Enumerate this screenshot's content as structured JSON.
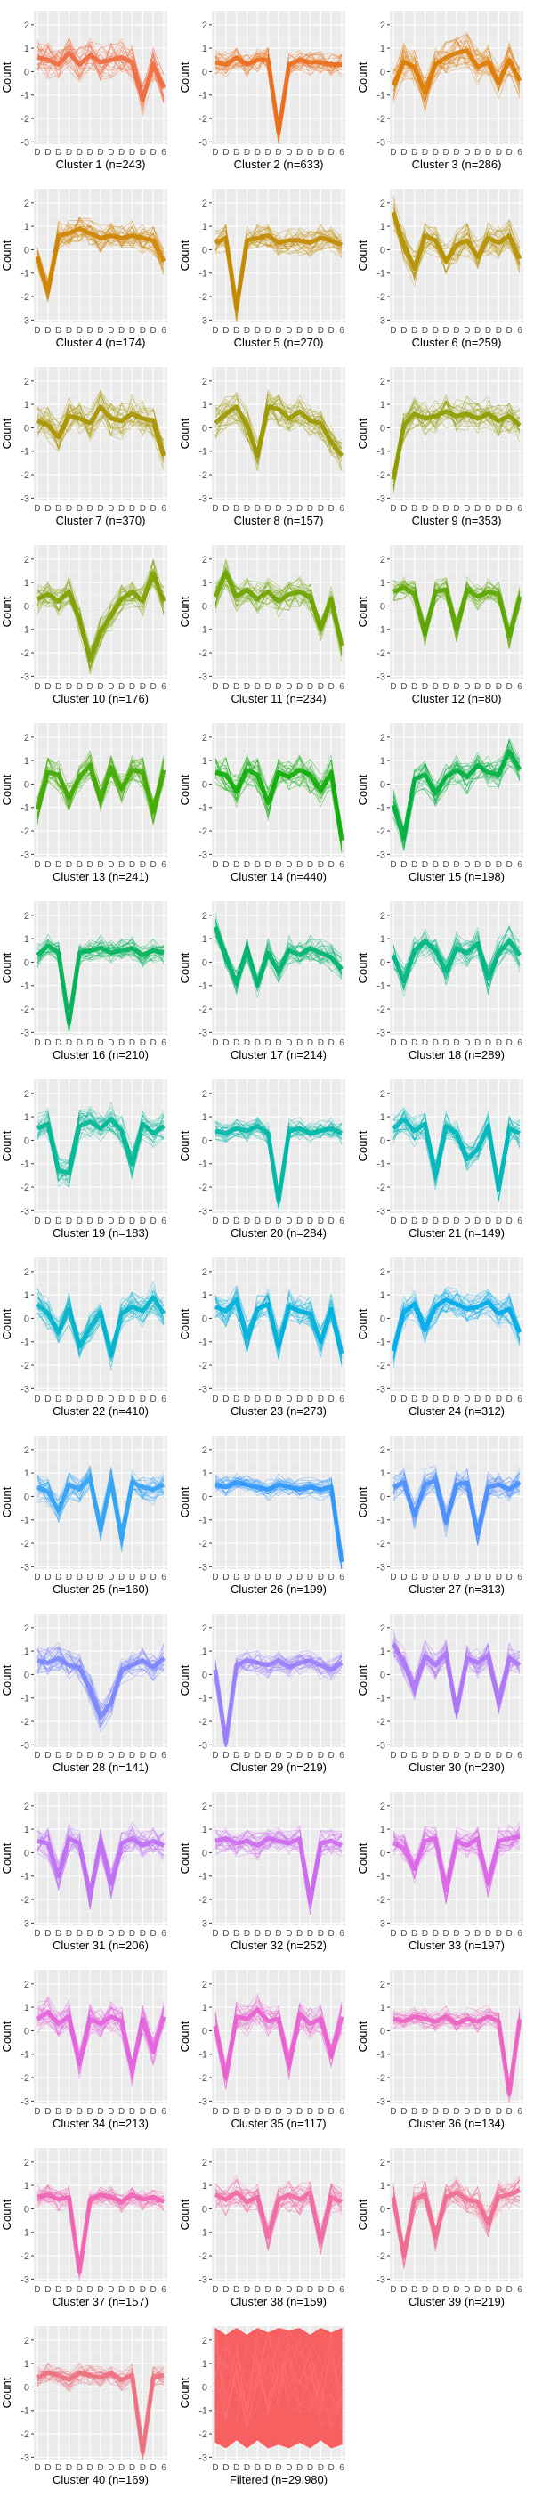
{
  "figure": {
    "background": "#ffffff",
    "panel_background": "#ebebeb",
    "grid_color": "#ffffff"
  },
  "chart_data": {
    "type": "line",
    "description_axis": "profile plots of standardized counts across samples",
    "ylabel": "Count",
    "ylim": [
      -3.1,
      2.6
    ],
    "y_ticks": [
      -3,
      -2,
      -1,
      0,
      1,
      2
    ],
    "x_tick_labels": [
      "D",
      "D",
      "D",
      "D",
      "D",
      "D",
      "D",
      "D",
      "D",
      "D",
      "D",
      "D",
      "6"
    ],
    "grid": true,
    "panels": [
      {
        "title": "Cluster 1 (n=243)",
        "color": "#f06a3e",
        "profile": [
          0.6,
          0.5,
          0.3,
          0.8,
          0.3,
          0.7,
          0.4,
          0.5,
          0.6,
          0.4,
          -1.2,
          0.3,
          -0.7
        ],
        "spread": 0.7
      },
      {
        "title": "Cluster 2 (n=633)",
        "color": "#ea6e1d",
        "profile": [
          0.4,
          0.3,
          0.6,
          0.3,
          0.5,
          0.5,
          -2.6,
          0.3,
          0.5,
          0.4,
          0.4,
          0.3,
          0.3
        ],
        "spread": 0.45
      },
      {
        "title": "Cluster 3 (n=286)",
        "color": "#dd7a00",
        "profile": [
          -0.6,
          0.4,
          0.2,
          -0.9,
          0.3,
          0.6,
          0.8,
          0.9,
          0.2,
          0.4,
          -0.5,
          0.5,
          -0.4
        ],
        "spread": 0.7
      },
      {
        "title": "Cluster 4 (n=174)",
        "color": "#cf8300",
        "profile": [
          -0.3,
          -1.8,
          0.6,
          0.7,
          0.9,
          0.7,
          0.5,
          0.6,
          0.5,
          0.6,
          0.5,
          0.4,
          -0.5
        ],
        "spread": 0.55
      },
      {
        "title": "Cluster 5 (n=270)",
        "color": "#c28a00",
        "profile": [
          0.3,
          0.5,
          -2.5,
          0.4,
          0.5,
          0.6,
          0.3,
          0.4,
          0.4,
          0.3,
          0.5,
          0.4,
          0.2
        ],
        "spread": 0.55
      },
      {
        "title": "Cluster 6 (n=259)",
        "color": "#b59000",
        "profile": [
          1.6,
          0.2,
          -0.8,
          0.6,
          0.4,
          -0.5,
          0.2,
          0.4,
          -0.3,
          0.5,
          0.3,
          0.6,
          -0.4
        ],
        "spread": 0.7
      },
      {
        "title": "Cluster 7 (n=370)",
        "color": "#a89400",
        "profile": [
          0.3,
          0.1,
          -0.4,
          0.5,
          0.4,
          0.2,
          0.9,
          0.4,
          0.3,
          0.6,
          0.4,
          0.3,
          -1.2
        ],
        "spread": 0.7
      },
      {
        "title": "Cluster 8 (n=157)",
        "color": "#9b9800",
        "profile": [
          0.2,
          0.6,
          0.9,
          0.1,
          -1.2,
          0.9,
          0.8,
          0.4,
          0.7,
          0.3,
          0.2,
          -0.6,
          -1.2
        ],
        "spread": 0.65
      },
      {
        "title": "Cluster 9 (n=353)",
        "color": "#8e9c00",
        "profile": [
          -2.2,
          0.1,
          0.6,
          0.4,
          0.5,
          0.7,
          0.5,
          0.6,
          0.4,
          0.6,
          0.3,
          0.5,
          0.1
        ],
        "spread": 0.65
      },
      {
        "title": "Cluster 10 (n=176)",
        "color": "#7fa000",
        "profile": [
          0.3,
          0.5,
          0.2,
          0.6,
          -0.6,
          -2.3,
          -1.1,
          -0.4,
          0.3,
          0.6,
          0.2,
          1.4,
          0.2
        ],
        "spread": 0.55
      },
      {
        "title": "Cluster 11 (n=234)",
        "color": "#6fa300",
        "profile": [
          0.4,
          1.4,
          0.4,
          0.7,
          0.3,
          0.6,
          0.2,
          0.5,
          0.6,
          0.4,
          -1.0,
          0.3,
          -1.7
        ],
        "spread": 0.6
      },
      {
        "title": "Cluster 12 (n=80)",
        "color": "#5ca600",
        "profile": [
          0.6,
          0.8,
          0.5,
          -1.2,
          0.6,
          0.7,
          -1.0,
          0.7,
          0.4,
          0.6,
          0.5,
          -1.3,
          0.4
        ],
        "spread": 0.45
      },
      {
        "title": "Cluster 13 (n=241)",
        "color": "#41aa00",
        "profile": [
          -1.1,
          0.5,
          0.4,
          -0.6,
          0.3,
          0.8,
          -0.7,
          0.7,
          -0.2,
          0.6,
          0.5,
          -1.2,
          0.6
        ],
        "spread": 0.6
      },
      {
        "title": "Cluster 14 (n=440)",
        "color": "#10ad08",
        "profile": [
          0.5,
          0.4,
          -0.3,
          0.6,
          0.4,
          -0.8,
          0.5,
          0.3,
          0.6,
          0.4,
          -0.3,
          0.5,
          -2.4
        ],
        "spread": 0.7
      },
      {
        "title": "Cluster 15 (n=198)",
        "color": "#00b03f",
        "profile": [
          -0.9,
          -2.3,
          0.2,
          0.4,
          -0.4,
          0.3,
          0.6,
          0.3,
          0.8,
          0.5,
          0.4,
          1.4,
          0.6
        ],
        "spread": 0.6
      },
      {
        "title": "Cluster 16 (n=210)",
        "color": "#00b35a",
        "profile": [
          0.3,
          0.7,
          0.4,
          -2.6,
          0.4,
          0.5,
          0.6,
          0.4,
          0.5,
          0.6,
          0.3,
          0.5,
          0.4
        ],
        "spread": 0.45
      },
      {
        "title": "Cluster 17 (n=214)",
        "color": "#00b46f",
        "profile": [
          1.5,
          0.2,
          -0.9,
          0.6,
          -1.0,
          0.4,
          -0.4,
          0.5,
          0.3,
          0.6,
          0.4,
          0.2,
          -0.3
        ],
        "spread": 0.5
      },
      {
        "title": "Cluster 18 (n=289)",
        "color": "#00b683",
        "profile": [
          0.3,
          -0.8,
          0.5,
          0.9,
          0.5,
          -0.4,
          0.6,
          0.4,
          0.8,
          -0.7,
          0.4,
          0.9,
          0.3
        ],
        "spread": 0.6
      },
      {
        "title": "Cluster 19 (n=183)",
        "color": "#00b896",
        "profile": [
          0.5,
          0.7,
          -1.3,
          -1.4,
          0.6,
          0.8,
          0.5,
          0.9,
          0.4,
          -1.0,
          0.7,
          0.3,
          0.6
        ],
        "spread": 0.6
      },
      {
        "title": "Cluster 20 (n=284)",
        "color": "#00b8a8",
        "profile": [
          0.4,
          0.3,
          0.5,
          0.4,
          0.6,
          0.3,
          -2.6,
          0.4,
          0.5,
          0.3,
          0.4,
          0.5,
          0.3
        ],
        "spread": 0.4
      },
      {
        "title": "Cluster 21 (n=149)",
        "color": "#00b7ba",
        "profile": [
          0.5,
          0.9,
          0.4,
          0.7,
          -1.5,
          0.6,
          0.3,
          -0.8,
          -0.4,
          0.6,
          -2.1,
          0.5,
          0.3
        ],
        "spread": 0.55
      },
      {
        "title": "Cluster 22 (n=410)",
        "color": "#00b4cb",
        "profile": [
          0.6,
          0.2,
          -0.6,
          0.4,
          -1.2,
          -0.4,
          0.3,
          -1.6,
          0.2,
          0.5,
          0.3,
          0.9,
          0.2
        ],
        "spread": 0.6
      },
      {
        "title": "Cluster 23 (n=273)",
        "color": "#00b0db",
        "profile": [
          0.5,
          0.3,
          0.8,
          -0.8,
          0.4,
          0.6,
          -1.2,
          0.5,
          0.3,
          0.2,
          -1.0,
          0.4,
          -1.5
        ],
        "spread": 0.6
      },
      {
        "title": "Cluster 24 (n=312)",
        "color": "#00abea",
        "profile": [
          -1.4,
          0.3,
          0.6,
          -0.5,
          0.5,
          0.8,
          0.6,
          0.4,
          0.5,
          0.7,
          0.2,
          0.4,
          -0.6
        ],
        "spread": 0.6
      },
      {
        "title": "Cluster 25 (n=160)",
        "color": "#33a3f5",
        "profile": [
          0.4,
          0.2,
          -0.6,
          0.5,
          0.3,
          0.8,
          -1.4,
          0.7,
          -1.8,
          0.6,
          0.4,
          0.3,
          0.5
        ],
        "spread": 0.55
      },
      {
        "title": "Cluster 26 (n=199)",
        "color": "#2f97fc",
        "profile": [
          0.5,
          0.4,
          0.6,
          0.5,
          0.4,
          0.3,
          0.5,
          0.4,
          0.3,
          0.4,
          0.3,
          0.4,
          -2.8
        ],
        "spread": 0.35
      },
      {
        "title": "Cluster 27 (n=313)",
        "color": "#4a8ffd",
        "profile": [
          0.4,
          0.6,
          -0.8,
          0.5,
          0.7,
          -1.1,
          0.5,
          0.6,
          -1.6,
          0.4,
          0.5,
          0.3,
          0.6
        ],
        "spread": 0.55
      },
      {
        "title": "Cluster 28 (n=141)",
        "color": "#7a86fd",
        "profile": [
          0.6,
          0.5,
          0.7,
          0.4,
          0.3,
          -0.6,
          -1.8,
          -1.2,
          0.2,
          0.4,
          0.6,
          0.3,
          0.7
        ],
        "spread": 0.55
      },
      {
        "title": "Cluster 29 (n=219)",
        "color": "#9a7efb",
        "profile": [
          0.2,
          -2.9,
          0.4,
          0.6,
          0.5,
          0.4,
          0.6,
          0.3,
          0.5,
          0.6,
          0.4,
          0.2,
          0.5
        ],
        "spread": 0.45
      },
      {
        "title": "Cluster 30 (n=230)",
        "color": "#ad75f7",
        "profile": [
          1.3,
          0.5,
          -0.6,
          0.8,
          0.4,
          0.9,
          -1.6,
          0.7,
          0.5,
          0.8,
          -1.2,
          0.7,
          0.4
        ],
        "spread": 0.55
      },
      {
        "title": "Cluster 31 (n=206)",
        "color": "#be6ff4",
        "profile": [
          0.5,
          0.4,
          -1.0,
          0.6,
          0.4,
          -1.8,
          0.5,
          -1.3,
          0.4,
          0.6,
          0.3,
          0.5,
          0.3
        ],
        "spread": 0.6
      },
      {
        "title": "Cluster 32 (n=252)",
        "color": "#cd6aef",
        "profile": [
          0.5,
          0.6,
          0.4,
          0.5,
          0.3,
          0.6,
          0.5,
          0.4,
          0.6,
          -2.1,
          0.4,
          0.5,
          0.3
        ],
        "spread": 0.5
      },
      {
        "title": "Cluster 33 (n=197)",
        "color": "#da65e8",
        "profile": [
          0.4,
          0.2,
          -0.7,
          0.5,
          0.6,
          -1.6,
          0.5,
          0.3,
          0.6,
          -1.3,
          0.5,
          0.6,
          0.7
        ],
        "spread": 0.55
      },
      {
        "title": "Cluster 34 (n=213)",
        "color": "#e363dd",
        "profile": [
          0.5,
          0.8,
          0.3,
          0.6,
          -1.4,
          0.5,
          0.3,
          0.6,
          0.4,
          -1.7,
          0.5,
          -0.9,
          0.6
        ],
        "spread": 0.6
      },
      {
        "title": "Cluster 35 (n=117)",
        "color": "#e962d1",
        "profile": [
          0.2,
          -2.0,
          0.6,
          0.5,
          0.9,
          0.4,
          0.5,
          -1.5,
          0.7,
          0.3,
          0.5,
          -1.1,
          0.6
        ],
        "spread": 0.6
      },
      {
        "title": "Cluster 36 (n=134)",
        "color": "#ec63c2",
        "profile": [
          0.5,
          0.4,
          0.6,
          0.5,
          0.4,
          0.6,
          0.3,
          0.5,
          0.4,
          0.6,
          0.4,
          -2.7,
          0.5
        ],
        "spread": 0.4
      },
      {
        "title": "Cluster 37 (n=157)",
        "color": "#ef64b3",
        "profile": [
          0.5,
          0.6,
          0.4,
          0.5,
          -2.7,
          0.4,
          0.6,
          0.5,
          0.3,
          0.6,
          0.4,
          0.5,
          0.3
        ],
        "spread": 0.4
      },
      {
        "title": "Cluster 38 (n=159)",
        "color": "#f06aa4",
        "profile": [
          0.6,
          0.4,
          0.7,
          0.3,
          0.5,
          -1.2,
          0.4,
          0.6,
          0.4,
          0.7,
          -1.4,
          0.5,
          0.3
        ],
        "spread": 0.6
      },
      {
        "title": "Cluster 39 (n=219)",
        "color": "#ef6c92",
        "profile": [
          0.5,
          -2.0,
          0.4,
          0.6,
          -1.2,
          0.5,
          0.7,
          0.4,
          0.3,
          -0.6,
          0.5,
          0.6,
          0.8
        ],
        "spread": 0.6
      },
      {
        "title": "Cluster 40 (n=169)",
        "color": "#ed7080",
        "profile": [
          0.4,
          0.6,
          0.5,
          0.3,
          0.6,
          0.5,
          0.4,
          0.6,
          0.3,
          0.5,
          -2.8,
          0.4,
          0.5
        ],
        "spread": 0.4
      },
      {
        "title": "Filtered (n=29,980)",
        "color": "#f8585a",
        "profile": [
          0.3,
          0.2,
          0.4,
          0.2,
          0.4,
          0.3,
          0.2,
          0.4,
          0.3,
          0.2,
          0.4,
          0.3,
          0.2
        ],
        "spread": 2.1,
        "filled": true
      }
    ]
  }
}
